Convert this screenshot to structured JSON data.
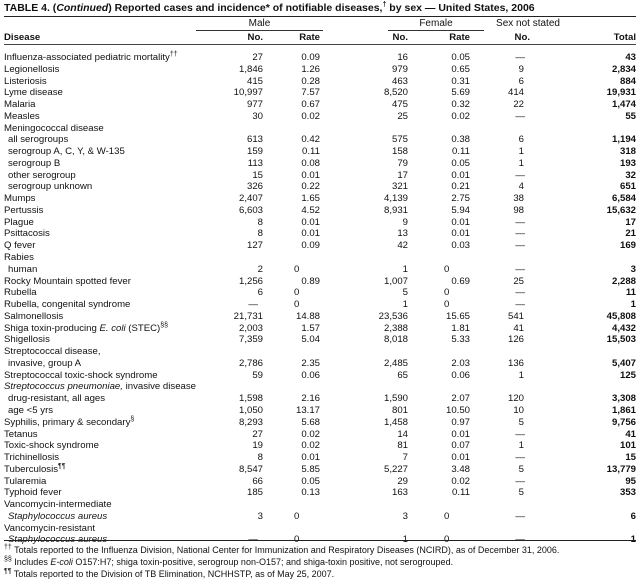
{
  "title": {
    "prefix": "TABLE 4. (",
    "continued": "Continued",
    "rest": ") Reported cases and incidence* of notifiable diseases,",
    "dagger": "†",
    "suffix": " by sex — United States, 2006"
  },
  "groups": {
    "male": "Male",
    "female": "Female",
    "not_stated": "Sex not stated"
  },
  "columns": {
    "disease": "Disease",
    "male_no": "No.",
    "male_rate": "Rate",
    "female_no": "No.",
    "female_rate": "Rate",
    "ns_no": "No.",
    "total": "Total"
  },
  "rows": [
    {
      "disease": "Influenza-associated pediatric mortality",
      "sup": "††",
      "mn": "27",
      "mr": "0.09",
      "fn": "16",
      "fr": "0.05",
      "ns": "—",
      "t": "43"
    },
    {
      "disease": "Legionellosis",
      "mn": "1,846",
      "mr": "1.26",
      "fn": "979",
      "fr": "0.65",
      "ns": "9",
      "t": "2,834"
    },
    {
      "disease": "Listeriosis",
      "mn": "415",
      "mr": "0.28",
      "fn": "463",
      "fr": "0.31",
      "ns": "6",
      "t": "884"
    },
    {
      "disease": "Lyme disease",
      "mn": "10,997",
      "mr": "7.57",
      "fn": "8,520",
      "fr": "5.69",
      "ns": "414",
      "t": "19,931"
    },
    {
      "disease": "Malaria",
      "mn": "977",
      "mr": "0.67",
      "fn": "475",
      "fr": "0.32",
      "ns": "22",
      "t": "1,474"
    },
    {
      "disease": "Measles",
      "mn": "30",
      "mr": "0.02",
      "fn": "25",
      "fr": "0.02",
      "ns": "—",
      "t": "55"
    },
    {
      "disease": "Meningococcal disease",
      "header": true
    },
    {
      "disease": "all serogroups",
      "indent": true,
      "mn": "613",
      "mr": "0.42",
      "fn": "575",
      "fr": "0.38",
      "ns": "6",
      "t": "1,194"
    },
    {
      "disease": "serogroup A, C, Y, & W-135",
      "indent": true,
      "mn": "159",
      "mr": "0.11",
      "fn": "158",
      "fr": "0.11",
      "ns": "1",
      "t": "318"
    },
    {
      "disease": "serogroup B",
      "indent": true,
      "mn": "113",
      "mr": "0.08",
      "fn": "79",
      "fr": "0.05",
      "ns": "1",
      "t": "193"
    },
    {
      "disease": "other serogroup",
      "indent": true,
      "mn": "15",
      "mr": "0.01",
      "fn": "17",
      "fr": "0.01",
      "ns": "—",
      "t": "32"
    },
    {
      "disease": "serogroup unknown",
      "indent": true,
      "mn": "326",
      "mr": "0.22",
      "fn": "321",
      "fr": "0.21",
      "ns": "4",
      "t": "651"
    },
    {
      "disease": "Mumps",
      "mn": "2,407",
      "mr": "1.65",
      "fn": "4,139",
      "fr": "2.75",
      "ns": "38",
      "t": "6,584"
    },
    {
      "disease": "Pertussis",
      "mn": "6,603",
      "mr": "4.52",
      "fn": "8,931",
      "fr": "5.94",
      "ns": "98",
      "t": "15,632"
    },
    {
      "disease": "Plague",
      "mn": "8",
      "mr": "0.01",
      "fn": "9",
      "fr": "0.01",
      "ns": "—",
      "t": "17"
    },
    {
      "disease": "Psittacosis",
      "mn": "8",
      "mr": "0.01",
      "fn": "13",
      "fr": "0.01",
      "ns": "—",
      "t": "21"
    },
    {
      "disease": "Q fever",
      "mn": "127",
      "mr": "0.09",
      "fn": "42",
      "fr": "0.03",
      "ns": "—",
      "t": "169"
    },
    {
      "disease": "Rabies",
      "header": true
    },
    {
      "disease": "human",
      "indent": true,
      "mn": "2",
      "mr": "0",
      "fn": "1",
      "fr": "0",
      "ns": "—",
      "t": "3"
    },
    {
      "disease": "Rocky Mountain spotted fever",
      "mn": "1,256",
      "mr": "0.89",
      "fn": "1,007",
      "fr": "0.69",
      "ns": "25",
      "t": "2,288"
    },
    {
      "disease": "Rubella",
      "mn": "6",
      "mr": "0",
      "fn": "5",
      "fr": "0",
      "ns": "—",
      "t": "11"
    },
    {
      "disease": "Rubella, congenital syndrome",
      "mn": "—",
      "mr": "0",
      "fn": "1",
      "fr": "0",
      "ns": "—",
      "t": "1"
    },
    {
      "disease": "Salmonellosis",
      "mn": "21,731",
      "mr": "14.88",
      "fn": "23,536",
      "fr": "15.65",
      "ns": "541",
      "t": "45,808"
    },
    {
      "disease": "Shiga toxin-producing ",
      "italic": "E. coli",
      "after": " (STEC)",
      "sup": "§§",
      "mn": "2,003",
      "mr": "1.57",
      "fn": "2,388",
      "fr": "1.81",
      "ns": "41",
      "t": "4,432"
    },
    {
      "disease": "Shigellosis",
      "mn": "7,359",
      "mr": "5.04",
      "fn": "8,018",
      "fr": "5.33",
      "ns": "126",
      "t": "15,503"
    },
    {
      "disease": "Streptococcal disease,",
      "header": true
    },
    {
      "disease": "invasive, group A",
      "indent": true,
      "mn": "2,786",
      "mr": "2.35",
      "fn": "2,485",
      "fr": "2.03",
      "ns": "136",
      "t": "5,407"
    },
    {
      "disease": "Streptococcal toxic-shock syndrome",
      "mn": "59",
      "mr": "0.06",
      "fn": "65",
      "fr": "0.06",
      "ns": "1",
      "t": "125"
    },
    {
      "disease": "",
      "italic": "Streptococcus pneumoniae,",
      "after": " invasive disease",
      "header": true
    },
    {
      "disease": "drug-resistant, all ages",
      "indent": true,
      "mn": "1,598",
      "mr": "2.16",
      "fn": "1,590",
      "fr": "2.07",
      "ns": "120",
      "t": "3,308"
    },
    {
      "disease": "age <5 yrs",
      "indent": true,
      "mn": "1,050",
      "mr": "13.17",
      "fn": "801",
      "fr": "10.50",
      "ns": "10",
      "t": "1,861"
    },
    {
      "disease": "Syphilis, primary & secondary",
      "sup": "§",
      "mn": "8,293",
      "mr": "5.68",
      "fn": "1,458",
      "fr": "0.97",
      "ns": "5",
      "t": "9,756"
    },
    {
      "disease": "Tetanus",
      "mn": "27",
      "mr": "0.02",
      "fn": "14",
      "fr": "0.01",
      "ns": "—",
      "t": "41"
    },
    {
      "disease": "Toxic-shock syndrome",
      "mn": "19",
      "mr": "0.02",
      "fn": "81",
      "fr": "0.07",
      "ns": "1",
      "t": "101"
    },
    {
      "disease": "Trichinellosis",
      "mn": "8",
      "mr": "0.01",
      "fn": "7",
      "fr": "0.01",
      "ns": "—",
      "t": "15"
    },
    {
      "disease": "Tuberculosis",
      "sup": "¶¶",
      "mn": "8,547",
      "mr": "5.85",
      "fn": "5,227",
      "fr": "3.48",
      "ns": "5",
      "t": "13,779"
    },
    {
      "disease": "Tularemia",
      "mn": "66",
      "mr": "0.05",
      "fn": "29",
      "fr": "0.02",
      "ns": "—",
      "t": "95"
    },
    {
      "disease": "Typhoid fever",
      "mn": "185",
      "mr": "0.13",
      "fn": "163",
      "fr": "0.11",
      "ns": "5",
      "t": "353"
    },
    {
      "disease": "Vancomycin-intermediate",
      "header": true
    },
    {
      "disease": "",
      "italic": "Staphylococcus aureus",
      "indent": true,
      "mn": "3",
      "mr": "0",
      "fn": "3",
      "fr": "0",
      "ns": "—",
      "t": "6"
    },
    {
      "disease": "Vancomycin-resistant",
      "header": true
    },
    {
      "disease": "",
      "italic": "Staphylococcus aureus",
      "indent": true,
      "mn": "—",
      "mr": "0",
      "fn": "1",
      "fr": "0",
      "ns": "—",
      "t": "1"
    }
  ],
  "footnotes": [
    {
      "mark": "††",
      "text": " Totals reported to the Influenza Division, National Center for Immunization and Respiratory Diseases (NCIRD), as of December 31, 2006."
    },
    {
      "mark": "§§",
      "text": " Includes ",
      "italic": "E-coli",
      "after": " O157:H7; shiga toxin-positive, serogroup non-O157; and shiga-toxin positive, not serogrouped."
    },
    {
      "mark": "¶¶",
      "text": " Totals reported to the Division of TB Elimination, NCHHSTP, as of May 25, 2007."
    }
  ]
}
